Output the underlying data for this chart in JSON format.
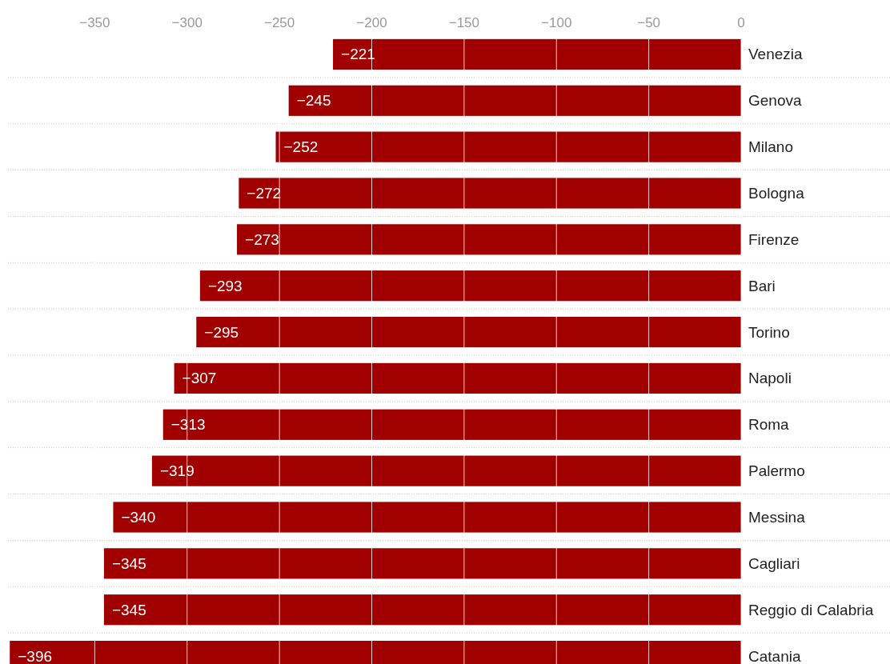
{
  "chart_data": {
    "type": "bar",
    "orientation": "horizontal",
    "categories": [
      "Venezia",
      "Genova",
      "Milano",
      "Bologna",
      "Firenze",
      "Bari",
      "Torino",
      "Napoli",
      "Roma",
      "Palermo",
      "Messina",
      "Cagliari",
      "Reggio di Calabria",
      "Catania"
    ],
    "values": [
      -221,
      -245,
      -252,
      -272,
      -273,
      -293,
      -295,
      -307,
      -313,
      -319,
      -340,
      -345,
      -345,
      -396
    ],
    "value_labels": [
      "−221",
      "−245",
      "−252",
      "−272",
      "−273",
      "−293",
      "−295",
      "−307",
      "−313",
      "−319",
      "−340",
      "−345",
      "−345",
      "−396"
    ],
    "color": "#a00000",
    "xlim": [
      -400,
      0
    ],
    "xticks": [
      {
        "value": -350,
        "label": "−350"
      },
      {
        "value": -300,
        "label": "−300"
      },
      {
        "value": -250,
        "label": "−250"
      },
      {
        "value": -200,
        "label": "−200"
      },
      {
        "value": -150,
        "label": "−150"
      },
      {
        "value": -100,
        "label": "−100"
      },
      {
        "value": -50,
        "label": "−50"
      },
      0
    ],
    "grid": true
  }
}
